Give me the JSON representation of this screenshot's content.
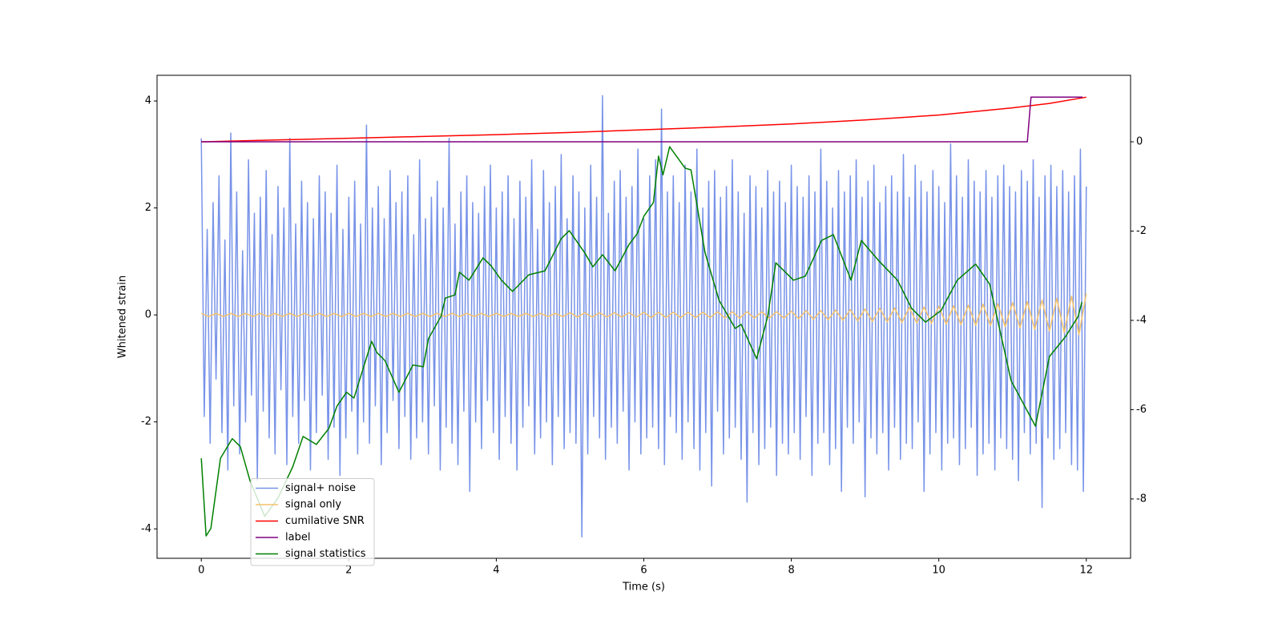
{
  "chart_data": {
    "type": "line",
    "xlabel": "Time (s)",
    "ylabel": "Whitened strain",
    "xlim": [
      -0.6,
      12.6
    ],
    "xticks": [
      0,
      2,
      4,
      6,
      8,
      10,
      12
    ],
    "ylim": [
      -4.55,
      4.48
    ],
    "yticks": [
      -4,
      -2,
      0,
      2,
      4
    ],
    "y2lim": [
      -9.33,
      1.49
    ],
    "y2ticks": [
      -8,
      -6,
      -4,
      -2,
      0
    ],
    "legend": "lower left",
    "x": [
      0,
      0.04,
      0.08,
      0.12,
      0.16,
      0.2,
      0.24,
      0.28,
      0.32,
      0.36,
      0.4,
      0.44,
      0.48,
      0.52,
      0.56,
      0.6,
      0.64,
      0.68,
      0.72,
      0.76,
      0.8,
      0.84,
      0.88,
      0.92,
      0.96,
      1,
      1.04,
      1.08,
      1.12,
      1.16,
      1.2,
      1.24,
      1.28,
      1.32,
      1.36,
      1.4,
      1.44,
      1.48,
      1.52,
      1.56,
      1.6,
      1.64,
      1.68,
      1.72,
      1.76,
      1.8,
      1.84,
      1.88,
      1.92,
      1.96,
      2,
      2.04,
      2.08,
      2.12,
      2.16,
      2.2,
      2.24,
      2.28,
      2.32,
      2.36,
      2.4,
      2.44,
      2.48,
      2.52,
      2.56,
      2.6,
      2.64,
      2.68,
      2.72,
      2.76,
      2.8,
      2.84,
      2.88,
      2.92,
      2.96,
      3,
      3.04,
      3.08,
      3.12,
      3.16,
      3.2,
      3.24,
      3.28,
      3.32,
      3.36,
      3.4,
      3.44,
      3.48,
      3.52,
      3.56,
      3.6,
      3.64,
      3.68,
      3.72,
      3.76,
      3.8,
      3.84,
      3.88,
      3.92,
      3.96,
      4,
      4.04,
      4.08,
      4.12,
      4.16,
      4.2,
      4.24,
      4.28,
      4.32,
      4.36,
      4.4,
      4.44,
      4.48,
      4.52,
      4.56,
      4.6,
      4.64,
      4.68,
      4.72,
      4.76,
      4.8,
      4.84,
      4.88,
      4.92,
      4.96,
      5,
      5.04,
      5.08,
      5.12,
      5.16,
      5.2,
      5.24,
      5.28,
      5.32,
      5.36,
      5.4,
      5.44,
      5.48,
      5.52,
      5.56,
      5.6,
      5.64,
      5.68,
      5.72,
      5.76,
      5.8,
      5.84,
      5.88,
      5.92,
      5.96,
      6,
      6.04,
      6.08,
      6.12,
      6.16,
      6.2,
      6.24,
      6.28,
      6.32,
      6.36,
      6.4,
      6.44,
      6.48,
      6.52,
      6.56,
      6.6,
      6.64,
      6.68,
      6.72,
      6.76,
      6.8,
      6.84,
      6.88,
      6.92,
      6.96,
      7,
      7.04,
      7.08,
      7.12,
      7.16,
      7.2,
      7.24,
      7.28,
      7.32,
      7.36,
      7.4,
      7.44,
      7.48,
      7.52,
      7.56,
      7.6,
      7.64,
      7.68,
      7.72,
      7.76,
      7.8,
      7.84,
      7.88,
      7.92,
      7.96,
      8,
      8.04,
      8.08,
      8.12,
      8.16,
      8.2,
      8.24,
      8.28,
      8.32,
      8.36,
      8.4,
      8.44,
      8.48,
      8.52,
      8.56,
      8.6,
      8.64,
      8.68,
      8.72,
      8.76,
      8.8,
      8.84,
      8.88,
      8.92,
      8.96,
      9,
      9.04,
      9.08,
      9.12,
      9.16,
      9.2,
      9.24,
      9.28,
      9.32,
      9.36,
      9.4,
      9.44,
      9.48,
      9.52,
      9.56,
      9.6,
      9.64,
      9.68,
      9.72,
      9.76,
      9.8,
      9.84,
      9.88,
      9.92,
      9.96,
      10,
      10.04,
      10.08,
      10.12,
      10.16,
      10.2,
      10.24,
      10.28,
      10.32,
      10.36,
      10.4,
      10.44,
      10.48,
      10.52,
      10.56,
      10.6,
      10.64,
      10.68,
      10.72,
      10.76,
      10.8,
      10.84,
      10.88,
      10.92,
      10.96,
      11,
      11.04,
      11.08,
      11.12,
      11.16,
      11.2,
      11.24,
      11.28,
      11.32,
      11.36,
      11.4,
      11.44,
      11.48,
      11.52,
      11.56,
      11.6,
      11.64,
      11.68,
      11.72,
      11.76,
      11.8,
      11.84,
      11.88,
      11.92,
      11.96,
      12
    ],
    "series": [
      {
        "name": "signal+ noise",
        "color": "#7893e8",
        "values": [
          3.3,
          -1.9,
          1.6,
          -2.4,
          2.1,
          -1.2,
          2.6,
          -2.2,
          1.4,
          -2.9,
          3.4,
          -1.7,
          2.3,
          -2.6,
          1.2,
          -2.0,
          2.9,
          -1.5,
          1.9,
          -3.1,
          2.2,
          -1.8,
          2.7,
          -2.3,
          1.5,
          -2.6,
          2.4,
          -1.4,
          2.0,
          -2.8,
          3.3,
          -1.9,
          1.7,
          -2.4,
          2.5,
          -1.6,
          2.1,
          -2.9,
          1.8,
          -2.2,
          2.6,
          -1.5,
          2.3,
          -2.7,
          1.9,
          -2.1,
          2.8,
          -3.0,
          1.6,
          -2.3,
          2.2,
          -1.8,
          2.5,
          -2.6,
          1.7,
          -2.0,
          3.55,
          -2.4,
          2.0,
          -1.7,
          2.4,
          -2.8,
          1.8,
          -2.2,
          2.7,
          -1.6,
          2.1,
          -2.5,
          2.3,
          -1.9,
          2.6,
          -2.7,
          1.5,
          -2.3,
          2.9,
          -2.0,
          1.8,
          -2.6,
          2.2,
          -1.7,
          2.5,
          -2.9,
          2.0,
          -2.1,
          3.3,
          -2.4,
          1.7,
          -2.8,
          2.3,
          -1.8,
          2.6,
          -3.3,
          2.1,
          -2.0,
          1.9,
          -2.5,
          2.4,
          -1.6,
          2.8,
          -2.2,
          2.0,
          -2.7,
          2.3,
          -1.9,
          2.6,
          -2.4,
          1.8,
          -2.9,
          2.5,
          -2.1,
          2.2,
          -1.7,
          2.9,
          -2.6,
          1.6,
          -2.3,
          2.7,
          -2.0,
          2.1,
          -2.8,
          2.4,
          -1.9,
          3.0,
          -2.5,
          1.8,
          -2.2,
          2.6,
          -2.4,
          2.3,
          -4.15,
          2.0,
          -2.6,
          2.8,
          -1.9,
          2.2,
          -2.3,
          4.1,
          -2.7,
          1.9,
          -2.1,
          2.5,
          -2.4,
          2.7,
          -1.8,
          2.2,
          -2.9,
          2.4,
          -2.0,
          3.1,
          -2.6,
          1.8,
          -2.3,
          2.6,
          -2.1,
          2.9,
          -2.5,
          3.85,
          -2.8,
          2.3,
          -1.9,
          2.6,
          -2.2,
          2.1,
          -2.7,
          2.8,
          -2.0,
          2.3,
          -2.5,
          3.1,
          -2.9,
          2.0,
          -2.2,
          2.5,
          -3.2,
          2.7,
          -1.8,
          2.2,
          -2.6,
          2.4,
          -2.3,
          2.9,
          -2.1,
          2.3,
          -2.7,
          1.9,
          -3.5,
          2.6,
          -2.2,
          2.4,
          -2.8,
          2.0,
          -2.5,
          2.7,
          -2.1,
          2.3,
          -3.0,
          2.5,
          -2.4,
          2.1,
          -2.6,
          2.8,
          -2.2,
          2.4,
          -2.7,
          2.2,
          -1.9,
          2.6,
          -3.0,
          2.3,
          -2.4,
          3.1,
          -2.2,
          2.5,
          -2.8,
          2.0,
          -2.5,
          2.7,
          -3.3,
          2.3,
          -2.1,
          2.6,
          -2.4,
          2.9,
          -2.0,
          2.2,
          -3.4,
          2.5,
          -2.3,
          2.8,
          -2.6,
          2.1,
          -2.2,
          2.4,
          -2.9,
          2.6,
          -2.1,
          2.3,
          -2.7,
          3.0,
          -2.4,
          2.2,
          -2.5,
          2.8,
          -2.0,
          2.5,
          -3.3,
          2.3,
          -2.6,
          2.7,
          -2.2,
          2.4,
          -2.9,
          2.1,
          -2.4,
          3.2,
          -2.3,
          2.6,
          -2.8,
          2.2,
          -2.5,
          2.9,
          -2.1,
          2.5,
          -3.0,
          2.3,
          -2.6,
          2.7,
          -2.4,
          2.2,
          -2.9,
          2.6,
          -2.3,
          2.8,
          -2.5,
          2.4,
          -2.7,
          2.3,
          -3.1,
          2.7,
          -2.2,
          2.5,
          -2.6,
          2.9,
          -2.4,
          2.2,
          -3.6,
          2.6,
          -2.3,
          2.8,
          -2.7,
          2.4,
          -2.5,
          2.7,
          -2.2,
          2.3,
          -2.8,
          2.6,
          -2.9,
          3.1,
          -3.3,
          2.4
        ]
      },
      {
        "name": "signal only",
        "color": "#f5c26b",
        "x": [
          0,
          0.1,
          0.2,
          0.3,
          0.4,
          0.5,
          0.6,
          0.7,
          0.8,
          0.9,
          1,
          1.1,
          1.2,
          1.3,
          1.4,
          1.5,
          1.6,
          1.7,
          1.8,
          1.9,
          2,
          2.1,
          2.2,
          2.3,
          2.4,
          2.5,
          2.6,
          2.7,
          2.8,
          2.9,
          3,
          3.1,
          3.2,
          3.3,
          3.4,
          3.5,
          3.6,
          3.7,
          3.8,
          3.9,
          4,
          4.1,
          4.2,
          4.3,
          4.4,
          4.5,
          4.6,
          4.7,
          4.8,
          4.9,
          5,
          5.1,
          5.2,
          5.3,
          5.4,
          5.5,
          5.6,
          5.7,
          5.8,
          5.9,
          6,
          6.1,
          6.2,
          6.3,
          6.4,
          6.5,
          6.6,
          6.7,
          6.8,
          6.9,
          7,
          7.1,
          7.2,
          7.3,
          7.4,
          7.5,
          7.6,
          7.7,
          7.8,
          7.9,
          8,
          8.1,
          8.2,
          8.3,
          8.4,
          8.5,
          8.6,
          8.7,
          8.8,
          8.9,
          9,
          9.1,
          9.2,
          9.3,
          9.4,
          9.5,
          9.6,
          9.7,
          9.8,
          9.9,
          10,
          10.1,
          10.2,
          10.3,
          10.4,
          10.5,
          10.6,
          10.7,
          10.8,
          10.9,
          11,
          11.1,
          11.2,
          11.3,
          11.4,
          11.5,
          11.6,
          11.7,
          11.8,
          11.9,
          12
        ],
        "values": [
          0.03,
          -0.03,
          0.03,
          -0.03,
          0.03,
          -0.03,
          0.03,
          -0.03,
          0.03,
          -0.03,
          0.03,
          -0.03,
          0.03,
          -0.03,
          0.03,
          -0.03,
          0.03,
          -0.03,
          0.03,
          -0.03,
          0.03,
          -0.03,
          0.03,
          -0.03,
          0.03,
          -0.03,
          0.03,
          -0.03,
          0.03,
          -0.03,
          0.03,
          -0.03,
          0.03,
          -0.03,
          0.03,
          -0.03,
          0.03,
          -0.03,
          0.03,
          -0.03,
          0.03,
          -0.03,
          0.03,
          -0.03,
          0.03,
          -0.03,
          0.03,
          -0.03,
          0.03,
          -0.03,
          0.04,
          -0.04,
          0.04,
          -0.04,
          0.04,
          -0.04,
          0.04,
          -0.04,
          0.04,
          -0.04,
          0.05,
          -0.05,
          0.05,
          -0.05,
          0.05,
          -0.05,
          0.05,
          -0.05,
          0.05,
          -0.05,
          0.06,
          -0.06,
          0.06,
          -0.06,
          0.06,
          -0.06,
          0.06,
          -0.06,
          0.06,
          -0.06,
          0.07,
          -0.07,
          0.08,
          -0.08,
          0.08,
          -0.09,
          0.09,
          -0.1,
          0.1,
          -0.11,
          0.11,
          -0.12,
          0.12,
          -0.13,
          0.13,
          -0.14,
          0.14,
          -0.15,
          0.15,
          -0.16,
          0.16,
          -0.17,
          0.17,
          -0.18,
          0.18,
          -0.19,
          0.2,
          -0.2,
          0.21,
          -0.22,
          0.23,
          -0.24,
          0.25,
          -0.27,
          0.28,
          -0.3,
          0.31,
          -0.33,
          0.35,
          -0.37,
          0.4
        ]
      },
      {
        "name": "cumilative SNR",
        "color": "red",
        "axis": "y2",
        "x": [
          0,
          1,
          2,
          3,
          4,
          5,
          6,
          7,
          8,
          9,
          10,
          11,
          11.5,
          12
        ],
        "values": [
          0,
          0.04,
          0.08,
          0.12,
          0.16,
          0.21,
          0.27,
          0.33,
          0.4,
          0.49,
          0.6,
          0.76,
          0.86,
          1.0
        ]
      },
      {
        "name": "label",
        "color": "purple",
        "axis": "y2",
        "x": [
          0,
          11.2,
          11.25,
          11.95
        ],
        "values": [
          0,
          0,
          1,
          1
        ]
      },
      {
        "name": "signal statistics",
        "color": "green",
        "axis": "y2",
        "x": [
          0,
          0.065,
          0.13,
          0.26,
          0.42,
          0.53,
          0.66,
          0.86,
          1.04,
          1.24,
          1.38,
          1.56,
          1.73,
          1.84,
          1.97,
          2.07,
          2.16,
          2.31,
          2.38,
          2.49,
          2.68,
          2.87,
          3.01,
          3.08,
          3.25,
          3.31,
          3.44,
          3.5,
          3.63,
          3.82,
          3.93,
          4.07,
          4.22,
          4.44,
          4.66,
          4.88,
          4.99,
          5.2,
          5.31,
          5.44,
          5.61,
          5.8,
          5.91,
          6.0,
          6.13,
          6.2,
          6.26,
          6.35,
          6.56,
          6.64,
          6.83,
          7.02,
          7.24,
          7.32,
          7.53,
          7.68,
          7.79,
          8.03,
          8.19,
          8.41,
          8.57,
          8.81,
          8.95,
          9.2,
          9.44,
          9.63,
          9.82,
          10.03,
          10.25,
          10.5,
          10.69,
          10.98,
          11.31,
          11.5,
          11.72,
          11.89,
          11.94
        ],
        "values": [
          -7.09,
          -8.83,
          -8.66,
          -7.09,
          -6.65,
          -6.83,
          -7.59,
          -8.39,
          -7.98,
          -7.28,
          -6.6,
          -6.78,
          -6.42,
          -5.92,
          -5.61,
          -5.74,
          -5.26,
          -4.47,
          -4.72,
          -4.9,
          -5.61,
          -5.0,
          -5.04,
          -4.41,
          -3.91,
          -3.5,
          -3.43,
          -2.92,
          -3.1,
          -2.6,
          -2.78,
          -3.1,
          -3.35,
          -2.98,
          -2.89,
          -2.17,
          -1.99,
          -2.49,
          -2.8,
          -2.53,
          -2.89,
          -2.3,
          -2.06,
          -1.67,
          -1.36,
          -0.32,
          -0.74,
          -0.11,
          -0.59,
          -0.63,
          -2.48,
          -3.55,
          -4.18,
          -4.09,
          -4.86,
          -3.91,
          -2.71,
          -3.1,
          -3.01,
          -2.21,
          -2.08,
          -3.1,
          -2.21,
          -2.69,
          -3.1,
          -3.73,
          -4.04,
          -3.78,
          -3.1,
          -2.74,
          -3.19,
          -5.35,
          -6.37,
          -4.81,
          -4.36,
          -3.91,
          -3.59
        ]
      }
    ]
  }
}
